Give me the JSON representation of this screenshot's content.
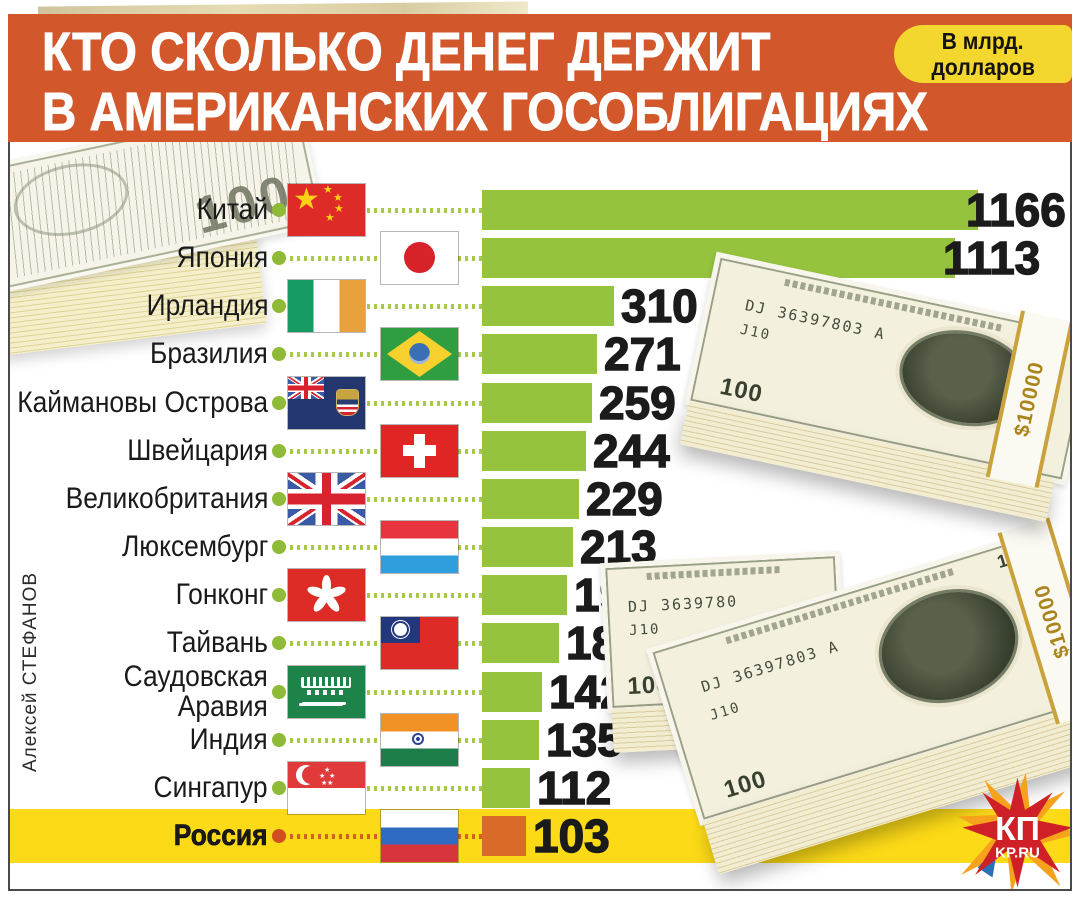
{
  "header": {
    "title_line1": "КТО СКОЛЬКО ДЕНЕГ ДЕРЖИТ",
    "title_line2": "В АМЕРИКАНСКИХ ГОСОБЛИГАЦИЯХ",
    "unit_badge": {
      "line1": "В млрд.",
      "line2": "долларов"
    }
  },
  "credit": "Алексей СТЕФАНОВ",
  "logo": {
    "text": "КП",
    "subtext": "KP.RU"
  },
  "decoration": {
    "bill_serial": "DJ 36397803 A",
    "bill_serial_short": "DJ 3639780",
    "bill_plate": "J10",
    "bill_denomination": "100",
    "band_text": "$10000"
  },
  "colors": {
    "header_bg": "#d2572b",
    "badge_bg": "#f3d62e",
    "bar_green": "#95c33e",
    "leader_green": "#a6c846",
    "highlight_band": "#fcda17",
    "highlight_bar": "#d96a28"
  },
  "chart_data": {
    "type": "bar",
    "orientation": "horizontal",
    "title": "КТО СКОЛЬКО ДЕНЕГ ДЕРЖИТ В АМЕРИКАНСКИХ ГОСОБЛИГАЦИЯХ",
    "unit": "В млрд. долларов",
    "categories": [
      "Китай",
      "Япония",
      "Ирландия",
      "Бразилия",
      "Каймановы Острова",
      "Швейцария",
      "Великобритания",
      "Люксембург",
      "Гонконг",
      "Тайвань",
      "Саудовская Аравия",
      "Индия",
      "Сингапур",
      "Россия"
    ],
    "values": [
      1166,
      1113,
      310,
      271,
      259,
      244,
      229,
      213,
      199,
      182,
      142,
      135,
      112,
      103
    ],
    "highlighted_category": "Россия",
    "bar_color": "#95c33e",
    "highlight_bar_color": "#d96a28",
    "value_labels": true,
    "grid": false,
    "legend_position": "none"
  },
  "rows": [
    {
      "id": "china",
      "label": "Китай",
      "value": 1166,
      "flag": "cn",
      "flag_pos": "near"
    },
    {
      "id": "japan",
      "label": "Япония",
      "value": 1113,
      "flag": "jp",
      "flag_pos": "far"
    },
    {
      "id": "ireland",
      "label": "Ирландия",
      "value": 310,
      "flag": "ie",
      "flag_pos": "near"
    },
    {
      "id": "brazil",
      "label": "Бразилия",
      "value": 271,
      "flag": "br",
      "flag_pos": "far"
    },
    {
      "id": "cayman-islands",
      "label": "Каймановы Острова",
      "value": 259,
      "flag": "ky",
      "flag_pos": "near"
    },
    {
      "id": "switzerland",
      "label": "Швейцария",
      "value": 244,
      "flag": "ch",
      "flag_pos": "far"
    },
    {
      "id": "uk",
      "label": "Великобритания",
      "value": 229,
      "flag": "gb",
      "flag_pos": "near"
    },
    {
      "id": "luxembourg",
      "label": "Люксембург",
      "value": 213,
      "flag": "lu",
      "flag_pos": "far"
    },
    {
      "id": "hong-kong",
      "label": "Гонконг",
      "value": 199,
      "flag": "hk",
      "flag_pos": "near"
    },
    {
      "id": "taiwan",
      "label": "Тайвань",
      "value": 182,
      "flag": "tw",
      "flag_pos": "far"
    },
    {
      "id": "saudi-arabia",
      "label": "Саудовская",
      "label2": "Аравия",
      "value": 142,
      "flag": "sa",
      "flag_pos": "near"
    },
    {
      "id": "india",
      "label": "Индия",
      "value": 135,
      "flag": "in",
      "flag_pos": "far"
    },
    {
      "id": "singapore",
      "label": "Сингапур",
      "value": 112,
      "flag": "sg",
      "flag_pos": "near"
    },
    {
      "id": "russia",
      "label": "Россия",
      "value": 103,
      "flag": "ru",
      "flag_pos": "far",
      "highlight": true
    }
  ]
}
